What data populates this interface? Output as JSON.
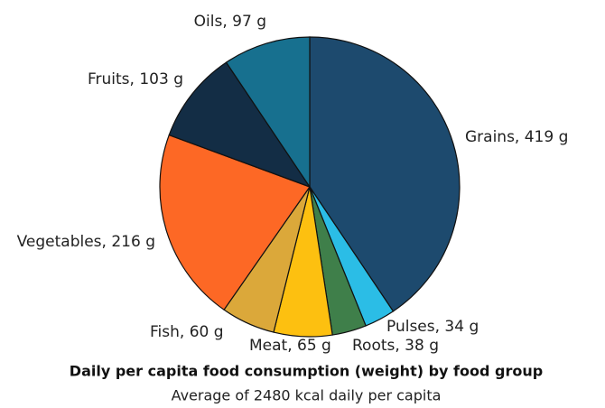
{
  "chart_data": {
    "type": "pie",
    "title": "Daily per capita food consumption (weight) by food group",
    "subtitle": "Average of 2480 kcal daily per capita",
    "categories": [
      "Grains",
      "Pulses",
      "Roots",
      "Meat",
      "Fish",
      "Vegetables",
      "Fruits",
      "Oils"
    ],
    "values": [
      419,
      34,
      38,
      65,
      60,
      216,
      103,
      97
    ],
    "value_labels": [
      "Grains, 419 g",
      "Pulses, 34 g",
      "Roots, 38 g",
      "Meat, 65 g",
      "Fish, 60 g",
      "Vegetables, 216 g",
      "Fruits, 103 g",
      "Oils, 97 g"
    ],
    "colors": [
      "#1d4a6e",
      "#2bbde6",
      "#3f7f4a",
      "#fdc010",
      "#dba83a",
      "#fd6825",
      "#132d45",
      "#17708f"
    ]
  }
}
